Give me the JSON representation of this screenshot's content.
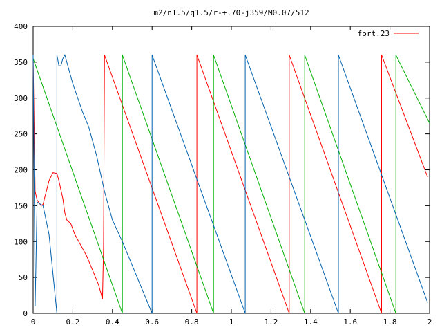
{
  "chart_data": {
    "type": "line",
    "title": "m2/n1.5/q1.5/r-+.70-j359/M0.07/512",
    "xlim": [
      0,
      2
    ],
    "ylim": [
      0,
      400
    ],
    "xticks": [
      "0",
      "0.2",
      "0.4",
      "0.6",
      "0.8",
      "1",
      "1.2",
      "1.4",
      "1.6",
      "1.8",
      "2"
    ],
    "yticks": [
      "0",
      "50",
      "100",
      "150",
      "200",
      "250",
      "300",
      "350",
      "400"
    ],
    "legend": {
      "label": "fort.23",
      "position": "top-right",
      "color": "#ff0000"
    },
    "grid": false,
    "series": [
      {
        "color": "#ff0000",
        "points": [
          [
            0.0,
            355
          ],
          [
            0.01,
            170
          ],
          [
            0.02,
            158
          ],
          [
            0.04,
            150
          ],
          [
            0.05,
            152
          ],
          [
            0.06,
            163
          ],
          [
            0.08,
            185
          ],
          [
            0.1,
            196
          ],
          [
            0.12,
            195
          ],
          [
            0.13,
            185
          ],
          [
            0.15,
            160
          ],
          [
            0.16,
            140
          ],
          [
            0.17,
            130
          ],
          [
            0.19,
            125
          ],
          [
            0.21,
            110
          ],
          [
            0.24,
            95
          ],
          [
            0.27,
            80
          ],
          [
            0.3,
            60
          ],
          [
            0.33,
            40
          ],
          [
            0.34,
            30
          ],
          [
            0.35,
            20
          ],
          [
            0.355,
            90
          ],
          [
            0.36,
            355
          ],
          [
            0.36,
            360
          ],
          [
            0.826,
            0
          ],
          [
            0.826,
            360
          ],
          [
            1.292,
            0
          ],
          [
            1.292,
            360
          ],
          [
            1.758,
            0
          ],
          [
            1.758,
            360
          ],
          [
            1.99,
            190
          ]
        ]
      },
      {
        "color": "#00b000",
        "points": [
          [
            0.0,
            355
          ],
          [
            0.45,
            0
          ],
          [
            0.45,
            360
          ],
          [
            0.91,
            0
          ],
          [
            0.91,
            360
          ],
          [
            1.37,
            0
          ],
          [
            1.37,
            360
          ],
          [
            1.83,
            0
          ],
          [
            1.83,
            360
          ],
          [
            2.0,
            265
          ]
        ]
      },
      {
        "color": "#0060ad",
        "points": [
          [
            0.0,
            360
          ],
          [
            0.01,
            10
          ],
          [
            0.02,
            155
          ],
          [
            0.05,
            150
          ],
          [
            0.08,
            110
          ],
          [
            0.1,
            55
          ],
          [
            0.12,
            0
          ],
          [
            0.12,
            360
          ],
          [
            0.13,
            345
          ],
          [
            0.14,
            345
          ],
          [
            0.15,
            355
          ],
          [
            0.16,
            360
          ],
          [
            0.2,
            320
          ],
          [
            0.25,
            280
          ],
          [
            0.28,
            260
          ],
          [
            0.32,
            220
          ],
          [
            0.36,
            170
          ],
          [
            0.4,
            130
          ],
          [
            0.45,
            100
          ],
          [
            0.6,
            0
          ],
          [
            0.6,
            360
          ],
          [
            1.07,
            0
          ],
          [
            1.07,
            360
          ],
          [
            1.54,
            0
          ],
          [
            1.54,
            360
          ],
          [
            1.99,
            15
          ]
        ]
      }
    ]
  }
}
